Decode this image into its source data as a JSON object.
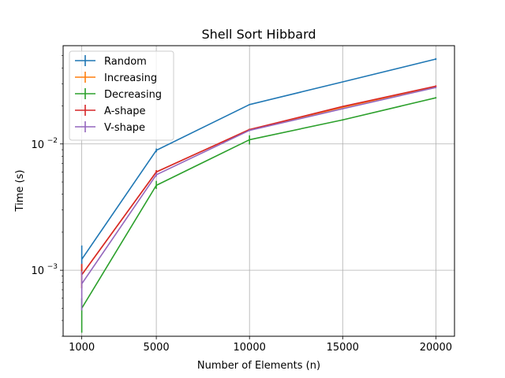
{
  "chart_data": {
    "type": "line",
    "title": "Shell Sort Hibbard",
    "xlabel": "Number of Elements (n)",
    "ylabel": "Time (s)",
    "yscale": "log",
    "xlim": [
      0,
      21000
    ],
    "ylim": [
      0.0003,
      0.06
    ],
    "grid": true,
    "legend_position": "top-left",
    "x": [
      1000,
      5000,
      10000,
      15000,
      20000
    ],
    "x_ticks": [
      "1000",
      "5000",
      "10000",
      "15000",
      "20000"
    ],
    "y_ticks": [
      {
        "value": 0.001,
        "base": "10",
        "exp": "−3"
      },
      {
        "value": 0.01,
        "base": "10",
        "exp": "−2"
      }
    ],
    "series": [
      {
        "name": "Random",
        "color": "#1f77b4",
        "values": [
          0.00122,
          0.0089,
          0.0205,
          0.031,
          0.047
        ],
        "err_low": [
          0.0003,
          0.0003,
          0.0002,
          0.0002,
          0.0008
        ],
        "err_high": [
          0.00035,
          0.0003,
          0.0002,
          0.0002,
          0.0008
        ]
      },
      {
        "name": "Increasing",
        "color": "#ff7f0e",
        "values": [
          0.00092,
          0.006,
          0.013,
          0.0195,
          0.0285
        ],
        "err_low": [
          0.0002,
          0.0002,
          0.0002,
          0.0002,
          0.0004
        ],
        "err_high": [
          0.0002,
          0.0002,
          0.0002,
          0.0002,
          0.0004
        ]
      },
      {
        "name": "Decreasing",
        "color": "#2ca02c",
        "values": [
          0.0005,
          0.0047,
          0.0108,
          0.0155,
          0.0232
        ],
        "err_low": [
          0.00018,
          0.0003,
          0.0009,
          0.0002,
          0.0003
        ],
        "err_high": [
          0.0001,
          0.0004,
          0.0009,
          0.0002,
          0.0003
        ]
      },
      {
        "name": "A-shape",
        "color": "#d62728",
        "values": [
          0.00092,
          0.006,
          0.013,
          0.0198,
          0.0287
        ],
        "err_low": [
          0.0002,
          0.0002,
          0.0002,
          0.0002,
          0.0004
        ],
        "err_high": [
          0.0002,
          0.0002,
          0.0002,
          0.0002,
          0.0004
        ]
      },
      {
        "name": "V-shape",
        "color": "#9467bd",
        "values": [
          0.00078,
          0.0057,
          0.0128,
          0.019,
          0.028
        ],
        "err_low": [
          0.0003,
          0.0002,
          0.0002,
          0.0002,
          0.0004
        ],
        "err_high": [
          0.0002,
          0.0002,
          0.0002,
          0.0002,
          0.0004
        ]
      }
    ]
  }
}
